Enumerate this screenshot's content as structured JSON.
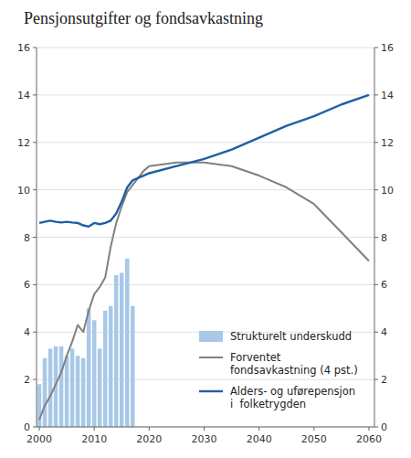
{
  "chart_data": {
    "type": "bar",
    "title": "Pensjonsutgifter og fondsavkastning",
    "xlim": [
      1999.5,
      2061
    ],
    "xticks": [
      2000,
      2010,
      2020,
      2030,
      2040,
      2050,
      2060
    ],
    "ylim": [
      0,
      16
    ],
    "yticks": [
      0,
      2,
      4,
      6,
      8,
      10,
      12,
      14,
      16
    ],
    "y2lim": [
      0,
      16
    ],
    "y2ticks": [
      0,
      2,
      4,
      6,
      8,
      10,
      12,
      14,
      16
    ],
    "grid": true,
    "legend": "lower right",
    "series": [
      {
        "name": "Strukturelt underskudd",
        "type": "bar",
        "color": "#a8c8e8",
        "x": [
          2000,
          2001,
          2002,
          2003,
          2004,
          2005,
          2006,
          2007,
          2008,
          2009,
          2010,
          2011,
          2012,
          2013,
          2014,
          2015,
          2016,
          2017
        ],
        "values": [
          1.8,
          2.9,
          3.3,
          3.4,
          3.4,
          3.0,
          3.3,
          3.0,
          2.9,
          5.0,
          4.5,
          3.3,
          4.9,
          5.1,
          6.4,
          6.5,
          7.1,
          5.1
        ]
      },
      {
        "name": "Forventet\nfondsavkastning (4 pst.)",
        "type": "line",
        "color": "#808080",
        "x": [
          2000,
          2001,
          2002,
          2003,
          2004,
          2005,
          2006,
          2007,
          2008,
          2009,
          2010,
          2011,
          2012,
          2013,
          2014,
          2015,
          2016,
          2017,
          2018,
          2019,
          2020,
          2025,
          2030,
          2035,
          2040,
          2045,
          2050,
          2055,
          2060
        ],
        "values": [
          0.3,
          0.9,
          1.3,
          1.8,
          2.3,
          3.0,
          3.6,
          4.3,
          4.0,
          4.9,
          5.6,
          5.9,
          6.3,
          7.6,
          8.6,
          9.3,
          9.9,
          10.2,
          10.5,
          10.8,
          11.0,
          11.15,
          11.15,
          11.0,
          10.6,
          10.1,
          9.4,
          8.2,
          7.0
        ]
      },
      {
        "name": "Alders- og uførepensjon\ni  folketrygden",
        "type": "line",
        "color": "#1f5fa6",
        "x": [
          2000,
          2001,
          2002,
          2003,
          2004,
          2005,
          2006,
          2007,
          2008,
          2009,
          2010,
          2011,
          2012,
          2013,
          2014,
          2015,
          2016,
          2017,
          2018,
          2019,
          2020,
          2025,
          2030,
          2035,
          2040,
          2045,
          2050,
          2055,
          2060
        ],
        "values": [
          8.6,
          8.65,
          8.7,
          8.65,
          8.62,
          8.65,
          8.62,
          8.6,
          8.5,
          8.45,
          8.6,
          8.55,
          8.6,
          8.7,
          9.0,
          9.5,
          10.1,
          10.4,
          10.5,
          10.6,
          10.7,
          11.0,
          11.3,
          11.7,
          12.2,
          12.7,
          13.1,
          13.6,
          14.0
        ]
      }
    ]
  }
}
